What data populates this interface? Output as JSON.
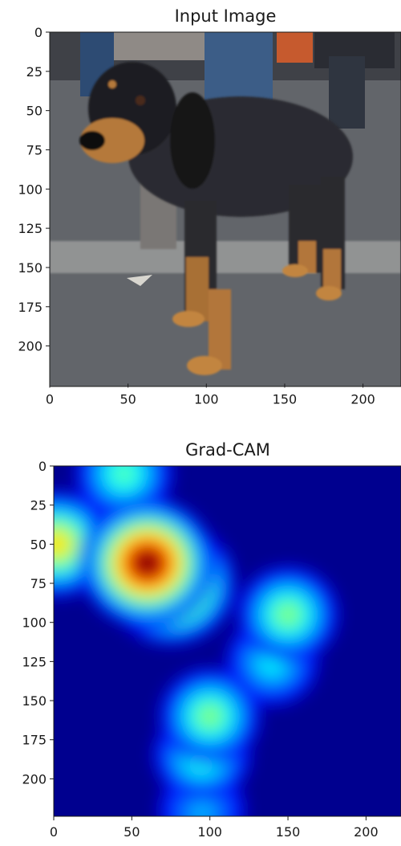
{
  "chart_data": [
    {
      "type": "image",
      "title": "Input Image",
      "subject": "dog",
      "xlim": [
        0,
        224
      ],
      "ylim": [
        0,
        224
      ],
      "y_inverted": true,
      "xticks": [
        0,
        50,
        100,
        150,
        200
      ],
      "yticks": [
        0,
        25,
        50,
        75,
        100,
        125,
        150,
        175,
        200
      ],
      "grid": false
    },
    {
      "type": "heatmap",
      "title": "Grad-CAM",
      "colormap": "jet",
      "xlim": [
        0,
        224
      ],
      "ylim": [
        0,
        224
      ],
      "y_inverted": true,
      "xticks": [
        0,
        50,
        100,
        150,
        200
      ],
      "yticks": [
        0,
        25,
        50,
        75,
        100,
        125,
        150,
        175,
        200
      ],
      "grid": false,
      "hotspots": [
        {
          "x": 60,
          "y": 62,
          "intensity": 1.0
        },
        {
          "x": 75,
          "y": 75,
          "intensity": 0.9
        },
        {
          "x": 2,
          "y": 50,
          "intensity": 0.65
        },
        {
          "x": 45,
          "y": 5,
          "intensity": 0.45
        },
        {
          "x": 150,
          "y": 95,
          "intensity": 0.5
        },
        {
          "x": 140,
          "y": 125,
          "intensity": 0.38
        },
        {
          "x": 100,
          "y": 160,
          "intensity": 0.5
        },
        {
          "x": 95,
          "y": 185,
          "intensity": 0.45
        },
        {
          "x": 95,
          "y": 220,
          "intensity": 0.3
        }
      ]
    }
  ]
}
